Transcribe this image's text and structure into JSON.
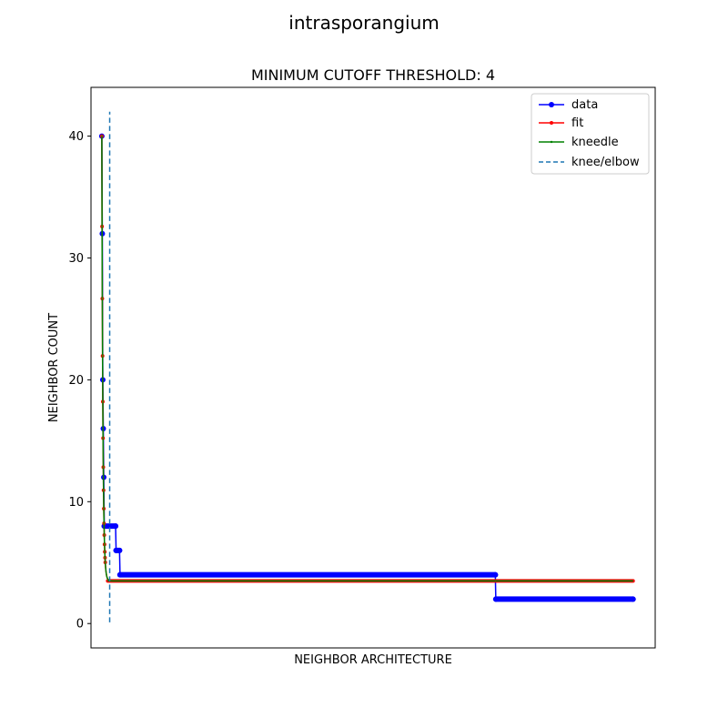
{
  "suptitle": "intrasporangium",
  "chart_data": {
    "type": "line",
    "title": "MINIMUM CUTOFF THRESHOLD: 4",
    "xlabel": "NEIGHBOR ARCHITECTURE",
    "ylabel": "NEIGHBOR COUNT",
    "xlim": [
      -22,
      1125
    ],
    "ylim": [
      -2,
      44
    ],
    "yticks": [
      0,
      10,
      20,
      30,
      40
    ],
    "xticks_shown": false,
    "grid": false,
    "legend_position": "top-right",
    "knee_x": 16,
    "series": [
      {
        "name": "data",
        "color": "#0000ff",
        "marker": "circle",
        "points": [
          [
            0,
            40
          ],
          [
            1,
            32
          ],
          [
            2,
            20
          ],
          [
            3,
            16
          ],
          [
            4,
            12
          ],
          [
            5,
            8
          ],
          [
            28,
            8
          ],
          [
            29,
            6
          ],
          [
            36,
            6
          ],
          [
            37,
            4
          ],
          [
            800,
            4
          ],
          [
            801,
            2
          ],
          [
            1080,
            2
          ]
        ]
      },
      {
        "name": "fit",
        "color": "#ff0000",
        "marker": "circle-small",
        "function": "3.5 + 36.5 * exp(-x / 2.2)",
        "x_range": [
          0,
          1080
        ]
      },
      {
        "name": "kneedle",
        "color": "#008000",
        "marker": "point",
        "function": "3.5 + 36.5 * exp(-x / 2.2)",
        "x_range": [
          0,
          1080
        ]
      },
      {
        "name": "knee/elbow",
        "color": "#1f77b4",
        "style": "dashed",
        "x": 16,
        "y_range": [
          0.1,
          42
        ]
      }
    ]
  }
}
